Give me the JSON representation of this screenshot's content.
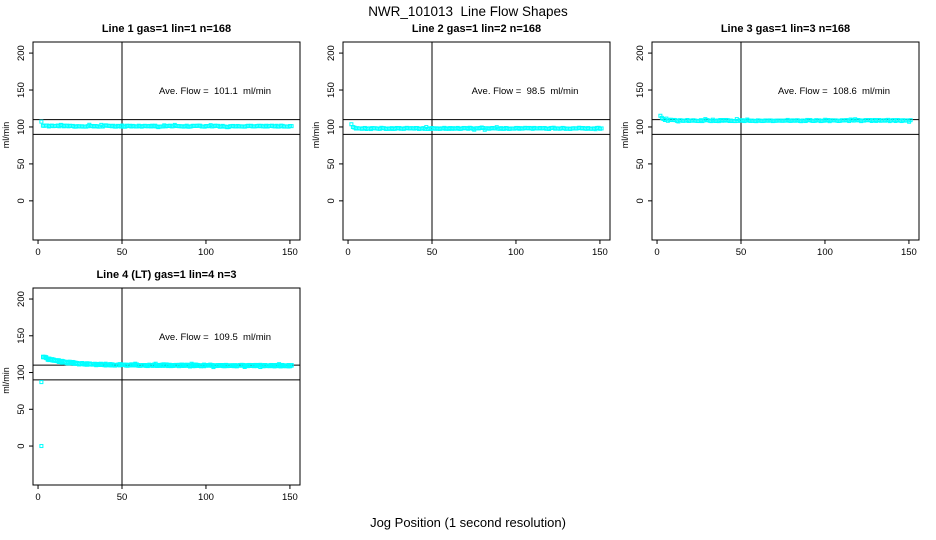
{
  "page": {
    "title": "NWR_101013  Line Flow Shapes",
    "xlabel": "Jog Position (1 second resolution)",
    "bg_color": "#ffffff",
    "fg_color": "#000000",
    "point_color": "#00ffff"
  },
  "chart_data": [
    {
      "type": "scatter",
      "title": "Line 1 gas=1 lin=1 n=168",
      "annotation": "Ave. Flow =  101.1  ml/min",
      "ave_flow_ml_min": 101.1,
      "n": 168,
      "ylabel": "ml/min",
      "x_ticks": [
        0,
        50,
        100,
        150
      ],
      "y_ticks": [
        0,
        50,
        100,
        150,
        200
      ],
      "xlim": [
        -3,
        156
      ],
      "ylim": [
        -53,
        215
      ],
      "vline_x": 50,
      "hlines_y": [
        110,
        90
      ],
      "legend": null,
      "grid": false,
      "series": [
        {
          "name": "flow",
          "seed": 11,
          "points": 168,
          "noise": 0.7,
          "profile": [
            [
              2,
              107.5
            ],
            [
              3,
              101.8
            ],
            [
              6,
              101.2
            ],
            [
              15,
              101.4
            ],
            [
              25,
              101.0
            ],
            [
              40,
              101.2
            ],
            [
              60,
              101.0
            ],
            [
              80,
              101.1
            ],
            [
              100,
              101.0
            ],
            [
              125,
              101.2
            ],
            [
              151,
              101.0
            ]
          ]
        }
      ],
      "outliers": []
    },
    {
      "type": "scatter",
      "title": "Line 2 gas=1 lin=2 n=168",
      "annotation": "Ave. Flow =  98.5  ml/min",
      "ave_flow_ml_min": 98.5,
      "n": 168,
      "ylabel": "ml/min",
      "x_ticks": [
        0,
        50,
        100,
        150
      ],
      "y_ticks": [
        0,
        50,
        100,
        150,
        200
      ],
      "xlim": [
        -3,
        156
      ],
      "ylim": [
        -53,
        215
      ],
      "vline_x": 50,
      "hlines_y": [
        110,
        90
      ],
      "legend": null,
      "grid": false,
      "series": [
        {
          "name": "flow",
          "seed": 22,
          "points": 168,
          "noise": 0.7,
          "profile": [
            [
              2,
              103.5
            ],
            [
              3,
              99.5
            ],
            [
              5,
              98.2
            ],
            [
              10,
              97.8
            ],
            [
              20,
              98.0
            ],
            [
              40,
              97.9
            ],
            [
              60,
              98.1
            ],
            [
              80,
              98.0
            ],
            [
              100,
              98.2
            ],
            [
              125,
              98.0
            ],
            [
              151,
              98.0
            ]
          ]
        }
      ],
      "outliers": []
    },
    {
      "type": "scatter",
      "title": "Line 3 gas=1 lin=3 n=168",
      "annotation": "Ave. Flow =  108.6  ml/min",
      "ave_flow_ml_min": 108.6,
      "n": 168,
      "ylabel": "ml/min",
      "x_ticks": [
        0,
        50,
        100,
        150
      ],
      "y_ticks": [
        0,
        50,
        100,
        150,
        200
      ],
      "xlim": [
        -3,
        156
      ],
      "ylim": [
        -53,
        215
      ],
      "vline_x": 50,
      "hlines_y": [
        110,
        90
      ],
      "legend": null,
      "grid": false,
      "series": [
        {
          "name": "flow",
          "seed": 33,
          "points": 168,
          "noise": 0.8,
          "profile": [
            [
              2,
              115.5
            ],
            [
              3,
              112.0
            ],
            [
              4,
              110.0
            ],
            [
              6,
              109.2
            ],
            [
              10,
              108.8
            ],
            [
              20,
              108.6
            ],
            [
              40,
              108.7
            ],
            [
              60,
              108.5
            ],
            [
              80,
              108.8
            ],
            [
              100,
              108.6
            ],
            [
              125,
              108.7
            ],
            [
              151,
              108.5
            ]
          ]
        }
      ],
      "outliers": []
    },
    {
      "type": "scatter",
      "title": "Line 4 (LT) gas=1 lin=4 n=3",
      "annotation": "Ave. Flow =  109.5  ml/min",
      "ave_flow_ml_min": 109.5,
      "n": 3,
      "ylabel": "ml/min",
      "x_ticks": [
        0,
        50,
        100,
        150
      ],
      "y_ticks": [
        0,
        50,
        100,
        150,
        200
      ],
      "xlim": [
        -3,
        156
      ],
      "ylim": [
        -53,
        215
      ],
      "vline_x": 50,
      "hlines_y": [
        110,
        90
      ],
      "legend": null,
      "grid": false,
      "series": [
        {
          "name": "run1",
          "seed": 44,
          "points": 160,
          "noise": 1.0,
          "profile": [
            [
              3,
              121.0
            ],
            [
              5,
              119.5
            ],
            [
              8,
              117.5
            ],
            [
              12,
              115.5
            ],
            [
              18,
              113.5
            ],
            [
              25,
              112.0
            ],
            [
              35,
              111.0
            ],
            [
              50,
              110.3
            ],
            [
              70,
              109.8
            ],
            [
              100,
              109.6
            ],
            [
              130,
              109.5
            ],
            [
              151,
              109.3
            ]
          ]
        },
        {
          "name": "run2",
          "seed": 45,
          "points": 160,
          "noise": 1.0,
          "profile": [
            [
              3,
              120.5
            ],
            [
              5,
              119.0
            ],
            [
              8,
              117.0
            ],
            [
              12,
              115.0
            ],
            [
              18,
              113.0
            ],
            [
              25,
              111.7
            ],
            [
              35,
              110.8
            ],
            [
              50,
              110.1
            ],
            [
              70,
              109.7
            ],
            [
              100,
              109.5
            ],
            [
              130,
              109.4
            ],
            [
              151,
              109.2
            ]
          ]
        },
        {
          "name": "run3",
          "seed": 46,
          "points": 160,
          "noise": 1.0,
          "profile": [
            [
              3,
              121.5
            ],
            [
              5,
              120.0
            ],
            [
              8,
              118.0
            ],
            [
              12,
              116.0
            ],
            [
              18,
              114.0
            ],
            [
              25,
              112.3
            ],
            [
              35,
              111.2
            ],
            [
              50,
              110.5
            ],
            [
              70,
              110.0
            ],
            [
              100,
              109.8
            ],
            [
              130,
              109.6
            ],
            [
              151,
              109.4
            ]
          ]
        }
      ],
      "outliers": [
        [
          2,
          87
        ],
        [
          2,
          0
        ]
      ]
    }
  ]
}
